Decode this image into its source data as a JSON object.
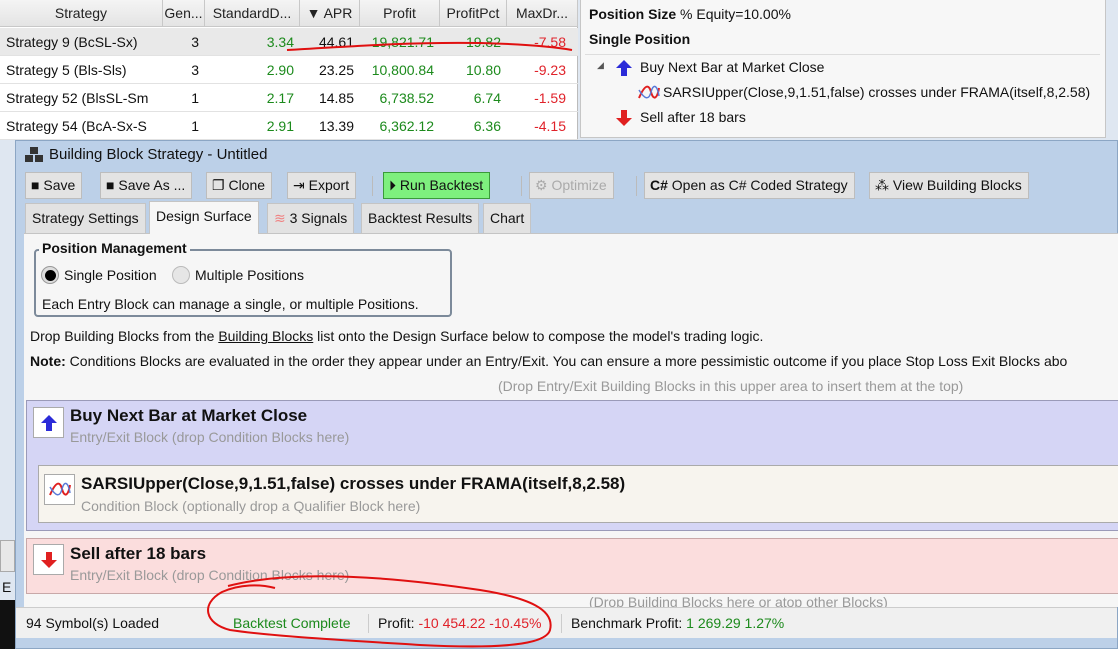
{
  "grid": {
    "columns": [
      "Strategy",
      "Gen...",
      "StandardD...",
      "APR",
      "Profit",
      "ProfitPct",
      "MaxDr..."
    ],
    "sort_indicator": "▼",
    "rows": [
      {
        "strategy": "Strategy 9 (BcSL-Sx)",
        "gen": "3",
        "std": "3.34",
        "apr": "44.61",
        "profit": "19,821.71",
        "pct": "19.82",
        "maxdd": "-7.58"
      },
      {
        "strategy": "Strategy 5 (Bls-Sls)",
        "gen": "3",
        "std": "2.90",
        "apr": "23.25",
        "profit": "10,800.84",
        "pct": "10.80",
        "maxdd": "-9.23"
      },
      {
        "strategy": "Strategy 52 (BlsSL-Sm",
        "gen": "1",
        "std": "2.17",
        "apr": "14.85",
        "profit": "6,738.52",
        "pct": "6.74",
        "maxdd": "-1.59"
      },
      {
        "strategy": "Strategy 54 (BcA-Sx-S",
        "gen": "1",
        "std": "2.91",
        "apr": "13.39",
        "profit": "6,362.12",
        "pct": "6.36",
        "maxdd": "-4.15"
      }
    ]
  },
  "summary": {
    "position_size_label": "Position Size",
    "position_size_value": "% Equity=10.00%",
    "position_mode": "Single Position",
    "tree": {
      "entry": "Buy Next Bar at Market Close",
      "condition": "SARSIUpper(Close,9,1.51,false) crosses under FRAMA(itself,8,2.58)",
      "exit": "Sell after 18 bars"
    }
  },
  "window": {
    "title": "Building Block Strategy - Untitled",
    "toolbar": {
      "save": "Save",
      "save_as": "Save As ...",
      "clone": "Clone",
      "export": "Export",
      "run": "Run Backtest",
      "optimize": "Optimize",
      "open_csharp": "Open as C# Coded Strategy",
      "csharp_badge": "C#",
      "view_blocks": "View Building Blocks"
    },
    "tabs": [
      "Strategy Settings",
      "Design Surface",
      "3 Signals",
      "Backtest Results",
      "Chart"
    ],
    "active_tab": "Design Surface",
    "position_mgmt": {
      "legend": "Position Management",
      "single": "Single Position",
      "multiple": "Multiple Positions",
      "selected": "single",
      "hint": "Each Entry Block can manage a single, or multiple Positions."
    },
    "instructions": {
      "pre": "Drop Building Blocks from the ",
      "link": "Building Blocks",
      "post": " list onto the Design Surface below to compose the model's trading logic.",
      "note_label": "Note:",
      "note": " Conditions Blocks are evaluated in the order they appear under an Entry/Exit. You can ensure a more pessimistic outcome if you place Stop Loss Exit Blocks abo",
      "drop_top": "(Drop Entry/Exit Building Blocks in this upper area to insert them at the top)",
      "drop_bottom": "(Drop Building Blocks here or atop other Blocks)"
    },
    "blocks": {
      "entry": {
        "title": "Buy Next Bar at Market Close",
        "sub": "Entry/Exit Block (drop Condition Blocks here)",
        "color": "#d5d5f5"
      },
      "condition": {
        "title": "SARSIUpper(Close,9,1.51,false) crosses under FRAMA(itself,8,2.58)",
        "sub": "Condition Block (optionally drop a Qualifier Block here)",
        "color": "#f7f4ee"
      },
      "exit": {
        "title": "Sell after 18 bars",
        "sub": "Entry/Exit Block (drop Condition Blocks here)",
        "color": "#fbdddd"
      }
    },
    "status": {
      "symbols": "94 Symbol(s) Loaded",
      "state": "Backtest Complete",
      "profit_label": "Profit:",
      "profit_value": "-10 454.22 -10.45%",
      "benchmark_label": "Benchmark Profit:",
      "benchmark_value": "1 269.29 1.27%"
    }
  },
  "background_fragment": "E",
  "colors": {
    "positive": "#1c8a1c",
    "negative": "#e0222a",
    "run_button": "#7ef07e",
    "annotation": "#e01010"
  }
}
